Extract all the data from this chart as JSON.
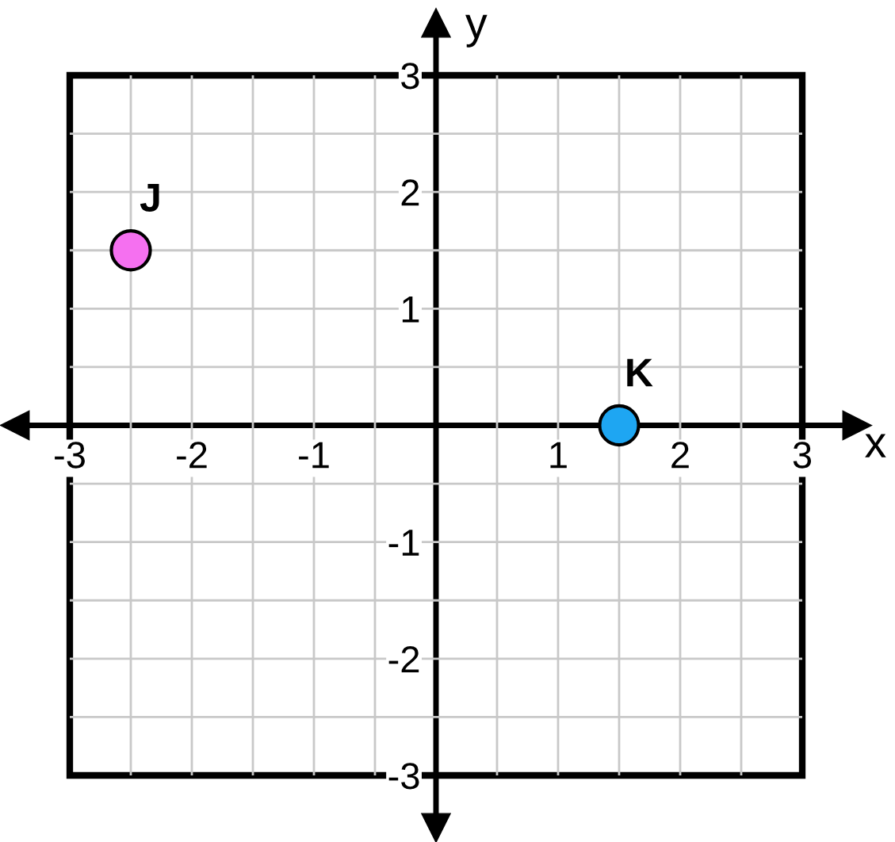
{
  "chart_data": {
    "type": "scatter",
    "xlabel": "x",
    "ylabel": "y",
    "series": [
      {
        "name": "J",
        "color": "#f570f0",
        "x": [
          -2.5
        ],
        "values": [
          1.5
        ]
      },
      {
        "name": "K",
        "color": "#1ea6f2",
        "x": [
          1.5
        ],
        "values": [
          0
        ]
      }
    ],
    "xlim": [
      -3,
      3
    ],
    "ylim": [
      -3,
      3
    ],
    "xticks": [
      -3,
      {
        "value": -2.5,
        "label": null
      },
      -2,
      {
        "value": -1.5,
        "label": null
      },
      -1,
      {
        "value": -0.5,
        "label": null
      },
      {
        "value": 0.5,
        "label": null
      },
      1,
      {
        "value": 1.5,
        "label": null
      },
      2,
      {
        "value": 2.5,
        "label": null
      },
      3
    ],
    "yticks": [
      -3,
      {
        "value": -2.5,
        "label": null
      },
      -2,
      {
        "value": -1.5,
        "label": null
      },
      -1,
      {
        "value": -0.5,
        "label": null
      },
      {
        "value": 0.5,
        "label": null
      },
      1,
      {
        "value": 1.5,
        "label": null
      },
      2,
      {
        "value": 2.5,
        "label": null
      },
      3
    ],
    "grid": true,
    "marker": "circle",
    "legend": false
  }
}
